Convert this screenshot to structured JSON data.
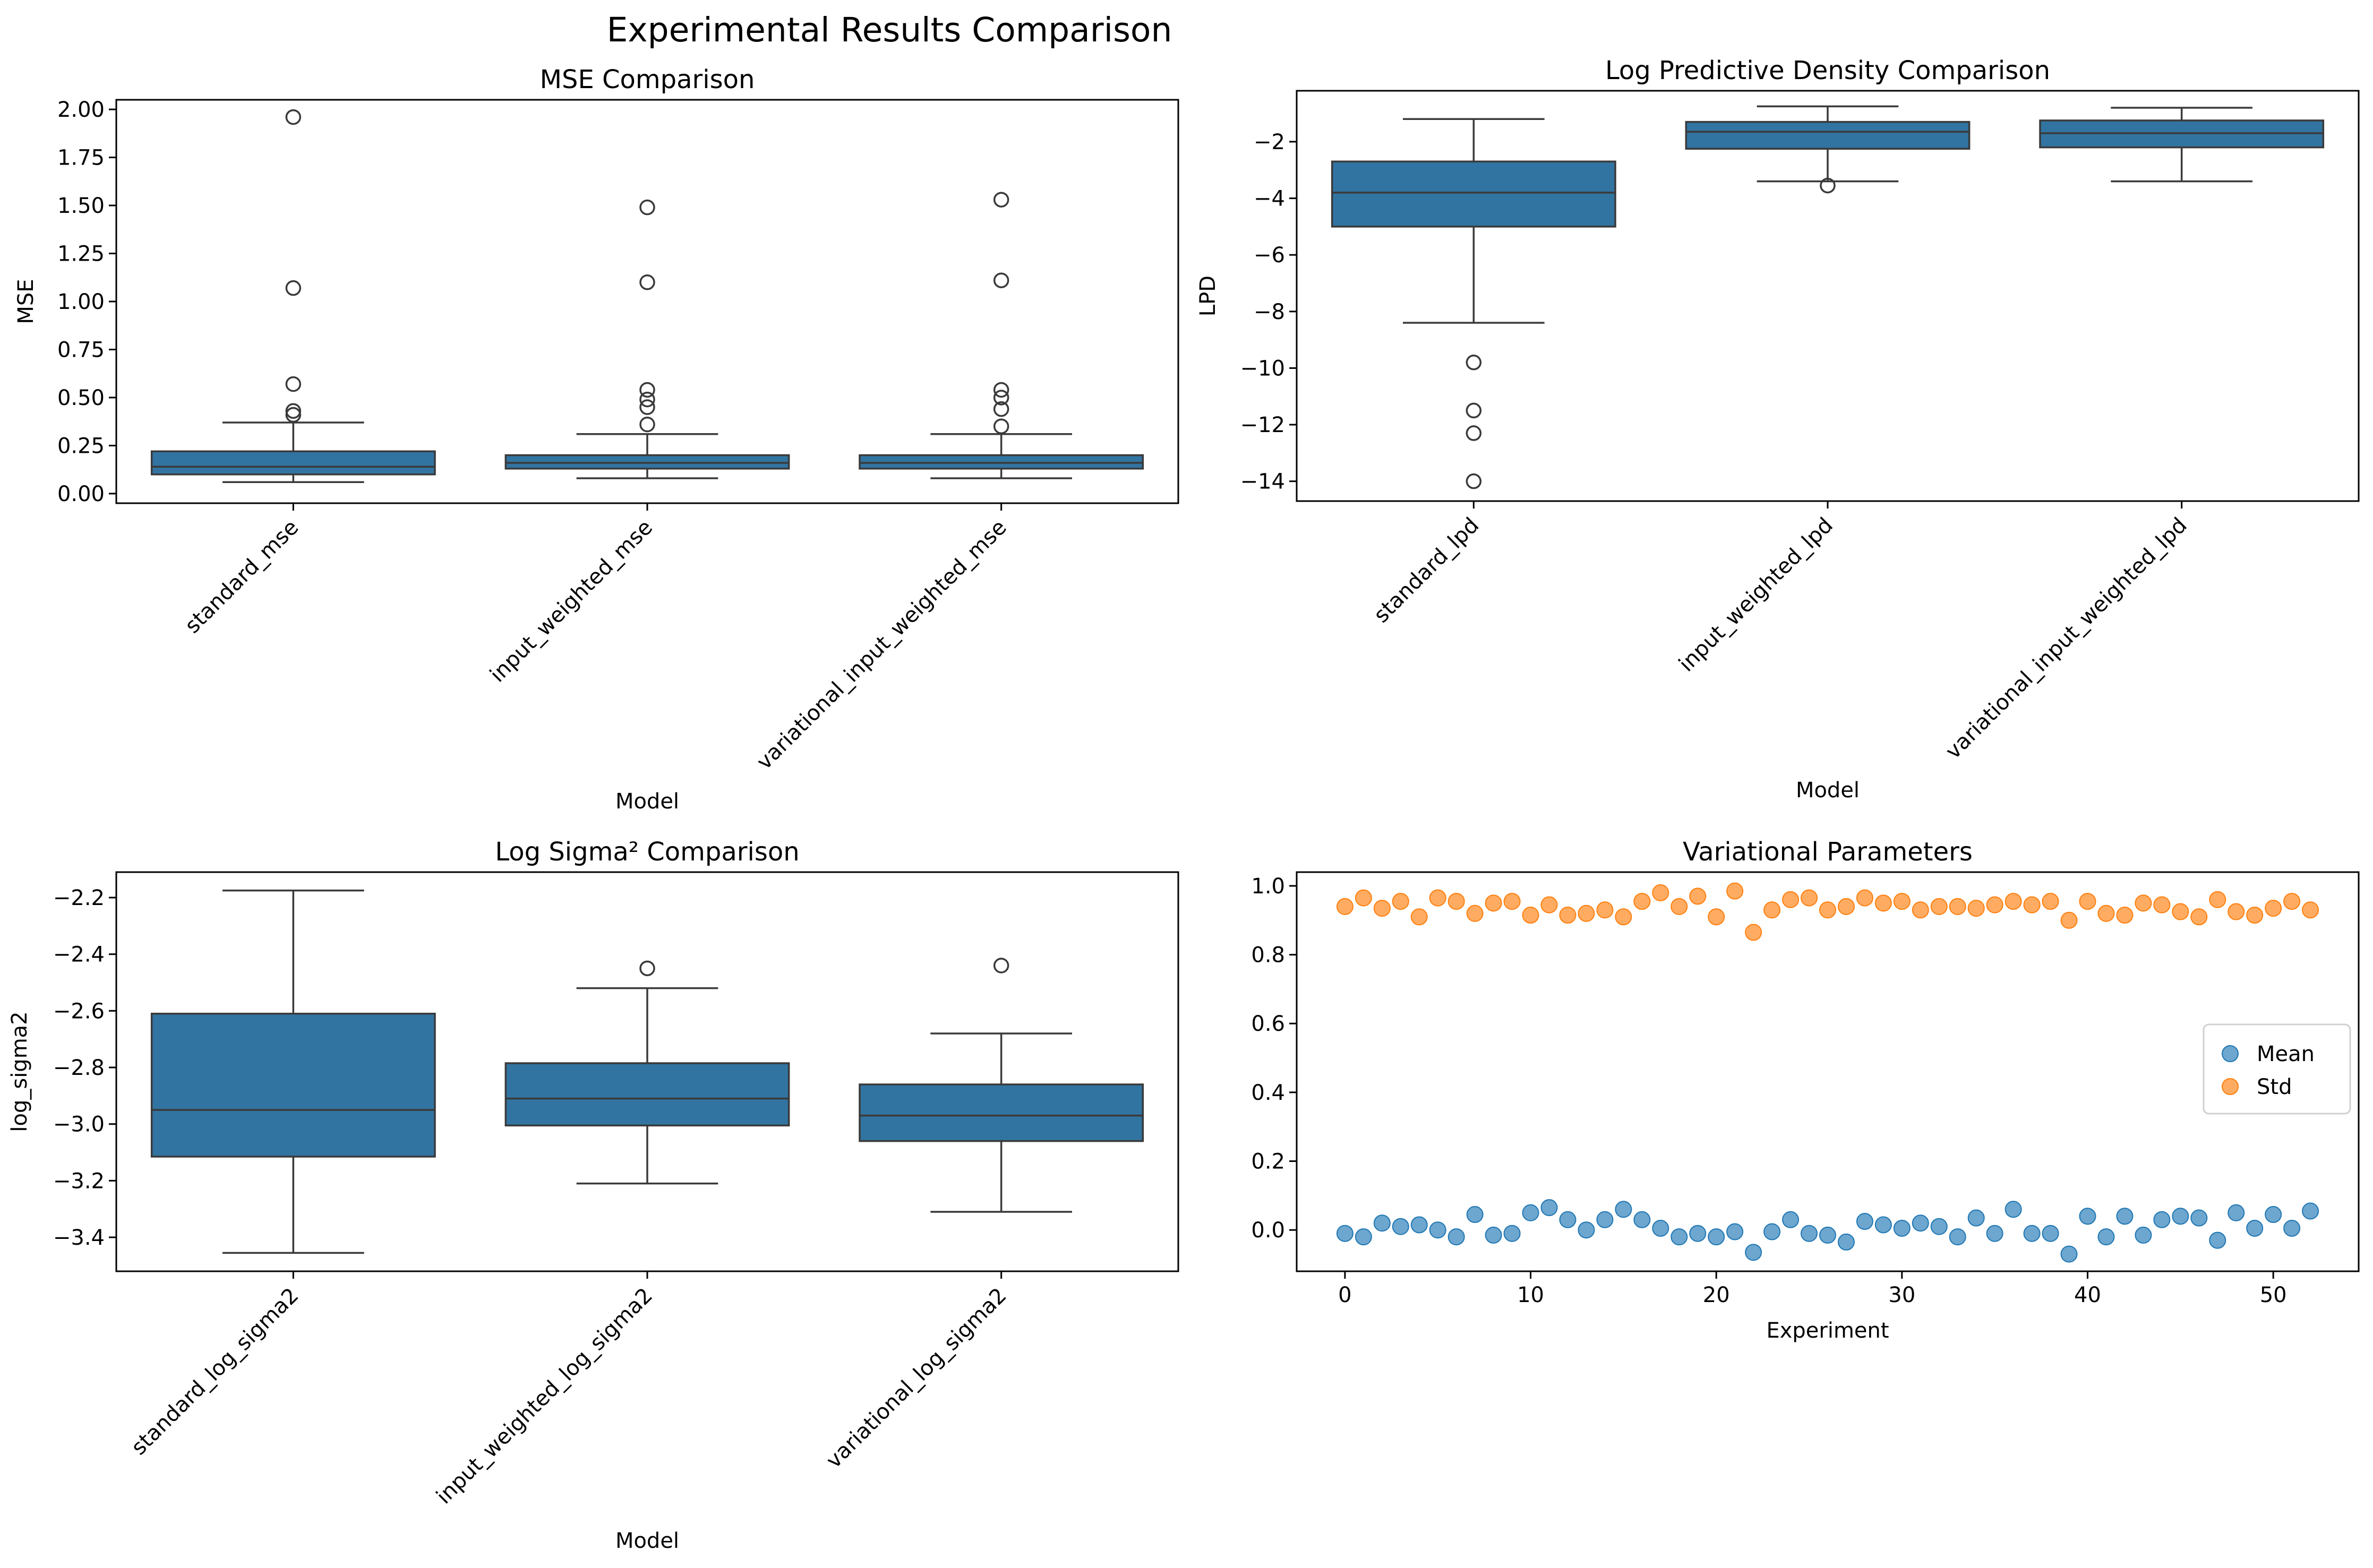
{
  "figure": {
    "suptitle": "Experimental Results Comparison"
  },
  "colors": {
    "box": "#3274a1",
    "mean": "#1f77b4",
    "std": "#ff7f0e",
    "line": "#3a3a3a"
  },
  "chart_data": [
    {
      "type": "box",
      "title": "MSE Comparison",
      "xlabel": "Model",
      "ylabel": "MSE",
      "ylim": [
        -0.05,
        2.05
      ],
      "yticks": [
        0,
        0.25,
        0.5,
        0.75,
        1.0,
        1.25,
        1.5,
        1.75,
        2.0
      ],
      "ytick_labels": [
        "0.00",
        "0.25",
        "0.50",
        "0.75",
        "1.00",
        "1.25",
        "1.50",
        "1.75",
        "2.00"
      ],
      "categories": [
        "standard_mse",
        "input_weighted_mse",
        "variational_input_weighted_mse"
      ],
      "boxes": [
        {
          "whislo": 0.06,
          "q1": 0.1,
          "med": 0.14,
          "q3": 0.22,
          "whishi": 0.37,
          "fliers": [
            0.41,
            0.43,
            0.57,
            1.07,
            1.96
          ]
        },
        {
          "whislo": 0.08,
          "q1": 0.13,
          "med": 0.16,
          "q3": 0.2,
          "whishi": 0.31,
          "fliers": [
            0.36,
            0.45,
            0.49,
            0.54,
            1.1,
            1.49
          ]
        },
        {
          "whislo": 0.08,
          "q1": 0.13,
          "med": 0.16,
          "q3": 0.2,
          "whishi": 0.31,
          "fliers": [
            0.35,
            0.44,
            0.5,
            0.54,
            1.11,
            1.53
          ]
        }
      ]
    },
    {
      "type": "box",
      "title": "Log Predictive Density Comparison",
      "xlabel": "Model",
      "ylabel": "LPD",
      "ylim": [
        -14.7,
        -0.2
      ],
      "yticks": [
        -14,
        -12,
        -10,
        -8,
        -6,
        -4,
        -2
      ],
      "ytick_labels": [
        "−14",
        "−12",
        "−10",
        "−8",
        "−6",
        "−4",
        "−2"
      ],
      "categories": [
        "standard_lpd",
        "input_weighted_lpd",
        "variational_input_weighted_lpd"
      ],
      "boxes": [
        {
          "whislo": -8.4,
          "q1": -5.0,
          "med": -3.8,
          "q3": -2.7,
          "whishi": -1.2,
          "fliers": [
            -9.8,
            -11.5,
            -12.3,
            -14.0
          ]
        },
        {
          "whislo": -3.4,
          "q1": -2.25,
          "med": -1.65,
          "q3": -1.3,
          "whishi": -0.75,
          "fliers": [
            -3.55
          ]
        },
        {
          "whislo": -3.4,
          "q1": -2.2,
          "med": -1.7,
          "q3": -1.25,
          "whishi": -0.8,
          "fliers": []
        }
      ]
    },
    {
      "type": "box",
      "title": "Log Sigma² Comparison",
      "xlabel": "Model",
      "ylabel": "log_sigma2",
      "ylim": [
        -3.52,
        -2.11
      ],
      "yticks": [
        -3.4,
        -3.2,
        -3.0,
        -2.8,
        -2.6,
        -2.4,
        -2.2
      ],
      "ytick_labels": [
        "−3.4",
        "−3.2",
        "−3.0",
        "−2.8",
        "−2.6",
        "−2.4",
        "−2.2"
      ],
      "categories": [
        "standard_log_sigma2",
        "input_weighted_log_sigma2",
        "variational_log_sigma2"
      ],
      "boxes": [
        {
          "whislo": -3.455,
          "q1": -3.115,
          "med": -2.95,
          "q3": -2.61,
          "whishi": -2.175,
          "fliers": []
        },
        {
          "whislo": -3.21,
          "q1": -3.005,
          "med": -2.91,
          "q3": -2.785,
          "whishi": -2.52,
          "fliers": [
            -2.45
          ]
        },
        {
          "whislo": -3.31,
          "q1": -3.06,
          "med": -2.97,
          "q3": -2.86,
          "whishi": -2.68,
          "fliers": [
            -2.44
          ]
        }
      ]
    },
    {
      "type": "scatter",
      "title": "Variational Parameters",
      "xlabel": "Experiment",
      "ylabel": "",
      "xlim": [
        -2.6,
        54.6
      ],
      "ylim": [
        -0.12,
        1.04
      ],
      "xticks": [
        0,
        10,
        20,
        30,
        40,
        50
      ],
      "xtick_labels": [
        "0",
        "10",
        "20",
        "30",
        "40",
        "50"
      ],
      "yticks": [
        0,
        0.2,
        0.4,
        0.6,
        0.8,
        1.0
      ],
      "ytick_labels": [
        "0.0",
        "0.2",
        "0.4",
        "0.6",
        "0.8",
        "1.0"
      ],
      "legend_position": "center-right",
      "series": [
        {
          "name": "Mean",
          "x_start": 0,
          "values": [
            -0.01,
            -0.02,
            0.02,
            0.01,
            0.015,
            0.0,
            -0.02,
            0.045,
            -0.015,
            -0.01,
            0.05,
            0.065,
            0.03,
            0.0,
            0.03,
            0.06,
            0.03,
            0.005,
            -0.02,
            -0.01,
            -0.02,
            -0.005,
            -0.065,
            -0.005,
            0.03,
            -0.01,
            -0.015,
            -0.035,
            0.025,
            0.015,
            0.005,
            0.02,
            0.01,
            -0.02,
            0.035,
            -0.01,
            0.06,
            -0.01,
            -0.01,
            -0.07,
            0.04,
            -0.02,
            0.04,
            -0.015,
            0.03,
            0.04,
            0.035,
            -0.03,
            0.05,
            0.005,
            0.045,
            0.005,
            0.055
          ]
        },
        {
          "name": "Std",
          "x_start": 0,
          "values": [
            0.94,
            0.965,
            0.935,
            0.955,
            0.91,
            0.965,
            0.955,
            0.92,
            0.95,
            0.955,
            0.915,
            0.945,
            0.915,
            0.92,
            0.93,
            0.91,
            0.955,
            0.98,
            0.94,
            0.97,
            0.91,
            0.985,
            0.865,
            0.93,
            0.96,
            0.965,
            0.93,
            0.94,
            0.965,
            0.95,
            0.955,
            0.93,
            0.94,
            0.94,
            0.935,
            0.945,
            0.955,
            0.945,
            0.955,
            0.9,
            0.955,
            0.92,
            0.915,
            0.95,
            0.945,
            0.925,
            0.91,
            0.96,
            0.925,
            0.915,
            0.935,
            0.955,
            0.93
          ]
        }
      ]
    }
  ]
}
